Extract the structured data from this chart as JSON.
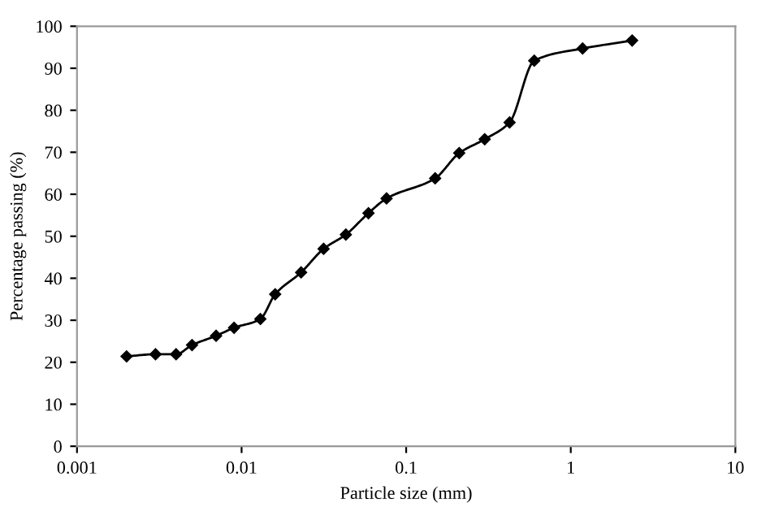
{
  "chart_data": {
    "type": "line",
    "xlabel": "Particle size (mm)",
    "ylabel": "Percentage passing (%)",
    "log": "x",
    "x": [
      0.002,
      0.003,
      0.004,
      0.005,
      0.007,
      0.009,
      0.013,
      0.016,
      0.023,
      0.0315,
      0.043,
      0.059,
      0.076,
      0.15,
      0.21,
      0.3,
      0.425,
      0.6,
      1.18,
      2.36
    ],
    "series": [
      {
        "color": "#000000",
        "values": [
          21.4,
          21.9,
          21.9,
          24.1,
          26.3,
          28.2,
          30.3,
          36.2,
          41.4,
          47.0,
          50.4,
          55.5,
          59.0,
          63.8,
          69.8,
          73.1,
          77.1,
          91.8,
          94.7,
          96.6
        ]
      }
    ],
    "xlim": [
      0.001,
      10
    ],
    "xticks": [
      0.001,
      0.01,
      0.1,
      1,
      10
    ],
    "ylim": [
      0,
      100
    ],
    "yticks": [
      0,
      10,
      20,
      30,
      40,
      50,
      60,
      70,
      80,
      90,
      100
    ],
    "grid": false,
    "legend": false,
    "marker": "diamond",
    "line_style": "solid"
  }
}
